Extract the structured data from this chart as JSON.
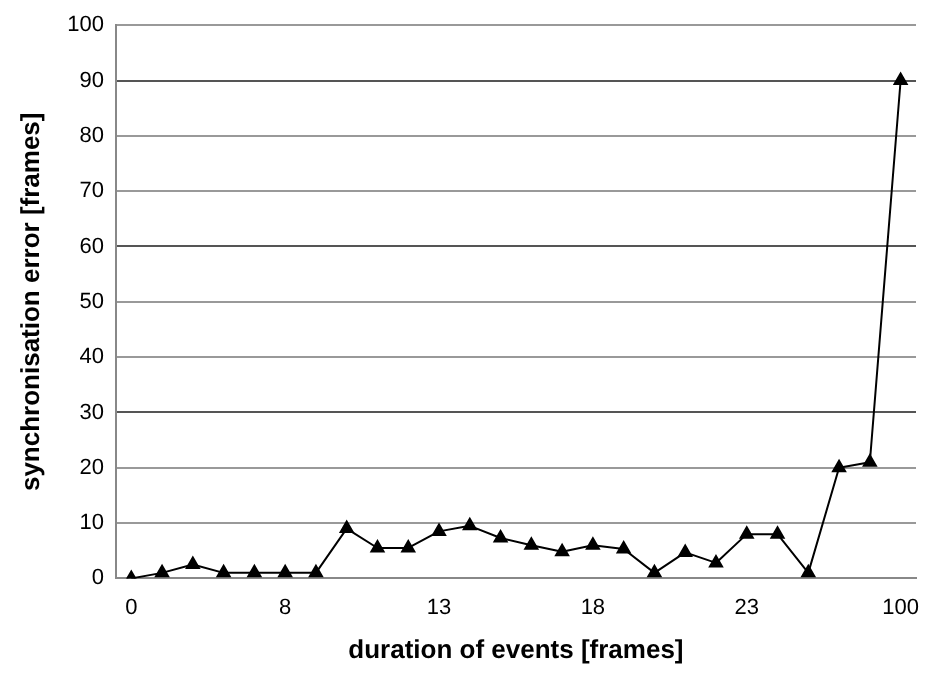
{
  "chart_data": {
    "type": "line",
    "xlabel": "duration of events [frames]",
    "ylabel": "synchronisation error [frames]",
    "categories": [
      "0",
      null,
      null,
      null,
      null,
      "8",
      null,
      null,
      null,
      null,
      "13",
      null,
      null,
      null,
      null,
      "18",
      null,
      null,
      null,
      null,
      "23",
      null,
      null,
      null,
      null,
      "100"
    ],
    "series": [
      {
        "color": "#000000",
        "values": [
          0,
          1,
          2.5,
          1,
          1,
          1,
          1,
          9,
          5.5,
          5.5,
          8.5,
          9.5,
          7.3,
          6,
          4.8,
          6,
          5.3,
          1,
          4.7,
          2.8,
          8,
          8,
          1,
          20,
          21,
          90
        ]
      }
    ],
    "ylim": [
      0,
      100
    ],
    "yticks": [
      0,
      10,
      20,
      30,
      40,
      50,
      60,
      70,
      80,
      90,
      100
    ],
    "grid": "y",
    "legend": false,
    "marker": "triangle",
    "line_style": "solid"
  }
}
